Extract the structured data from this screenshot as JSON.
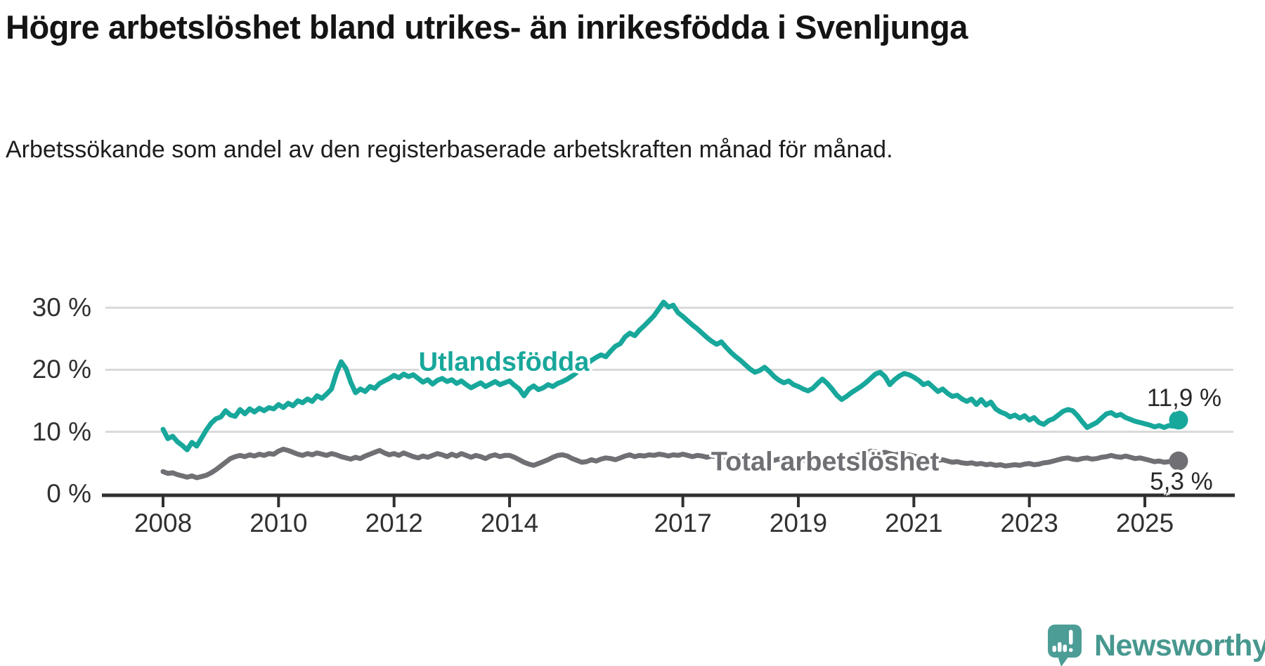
{
  "title": "Högre arbetslöshet bland utrikes- än inrikesfödda i Svenljunga",
  "subtitle": "Arbetssökande som andel av den registerbaserade arbetskraften månad för månad.",
  "colors": {
    "foreign_born_line": "#18a79b",
    "total_line": "#707074",
    "gridline": "#d8d8d8",
    "axis": "#303030",
    "text": "#1d1d1d",
    "logo_teal": "#4d9d97"
  },
  "branding": {
    "logo_text": "Newsworthy"
  },
  "chart_data": {
    "type": "line",
    "title": "Högre arbetslöshet bland utrikes- än inrikesfödda i Svenljunga",
    "subtitle": "Arbetssökande som andel av den registerbaserade arbetskraften månad för månad.",
    "x_unit": "month",
    "x_start": "2008-01",
    "x_end": "2025-08",
    "x_ticks": [
      2008,
      2010,
      2012,
      2014,
      2017,
      2019,
      2021,
      2023,
      2025
    ],
    "y_ticks": [
      {
        "value": 30,
        "label": "30 %"
      },
      {
        "value": 20,
        "label": "20 %"
      },
      {
        "value": 10,
        "label": "10 %"
      },
      {
        "value": 0,
        "label": "0 %"
      }
    ],
    "ylim": [
      0,
      32
    ],
    "grid": "horizontal",
    "legend_position": "inline-labels",
    "series": [
      {
        "name": "Utlandsfödda",
        "color": "#18a79b",
        "end_label": "11,9 %",
        "end_value": 11.9,
        "values": [
          10.4,
          8.9,
          9.3,
          8.4,
          7.8,
          7.1,
          8.3,
          7.7,
          9.0,
          10.3,
          11.4,
          12.1,
          12.4,
          13.4,
          12.7,
          12.5,
          13.6,
          12.9,
          13.7,
          13.2,
          13.8,
          13.4,
          13.9,
          13.7,
          14.4,
          13.9,
          14.6,
          14.2,
          15.0,
          14.7,
          15.3,
          14.9,
          15.8,
          15.4,
          16.1,
          16.9,
          19.4,
          21.3,
          20.2,
          18.0,
          16.3,
          16.9,
          16.5,
          17.3,
          17.0,
          17.8,
          18.2,
          18.6,
          19.1,
          18.7,
          19.3,
          18.9,
          19.2,
          18.6,
          18.0,
          18.4,
          17.7,
          18.3,
          18.6,
          18.1,
          18.4,
          17.8,
          18.2,
          17.6,
          17.1,
          17.5,
          17.9,
          17.3,
          17.7,
          18.1,
          17.6,
          17.9,
          18.2,
          17.5,
          16.9,
          15.8,
          16.9,
          17.4,
          16.8,
          17.1,
          17.6,
          17.3,
          17.8,
          18.1,
          18.5,
          19.0,
          19.6,
          20.3,
          20.9,
          21.5,
          22.0,
          22.4,
          22.1,
          23.0,
          23.8,
          24.2,
          25.3,
          25.9,
          25.5,
          26.4,
          27.1,
          27.9,
          28.7,
          29.8,
          30.9,
          30.1,
          30.4,
          29.2,
          28.6,
          27.9,
          27.2,
          26.6,
          25.9,
          25.2,
          24.6,
          24.1,
          24.5,
          23.6,
          22.8,
          22.1,
          21.5,
          20.8,
          20.1,
          19.6,
          19.9,
          20.4,
          19.7,
          18.9,
          18.3,
          17.9,
          18.2,
          17.6,
          17.3,
          16.9,
          16.6,
          17.0,
          17.8,
          18.5,
          17.8,
          16.9,
          15.9,
          15.2,
          15.7,
          16.3,
          16.8,
          17.3,
          17.9,
          18.6,
          19.3,
          19.6,
          18.9,
          17.6,
          18.4,
          19.0,
          19.4,
          19.2,
          18.8,
          18.3,
          17.6,
          17.9,
          17.2,
          16.5,
          16.9,
          16.2,
          15.7,
          15.9,
          15.3,
          14.9,
          15.3,
          14.4,
          15.2,
          14.3,
          14.8,
          13.7,
          13.2,
          12.9,
          12.4,
          12.7,
          12.2,
          12.6,
          11.9,
          12.3,
          11.5,
          11.2,
          11.8,
          12.1,
          12.7,
          13.3,
          13.6,
          13.4,
          12.6,
          11.6,
          10.7,
          11.1,
          11.5,
          12.2,
          12.9,
          13.1,
          12.6,
          12.8,
          12.3,
          12.0,
          11.7,
          11.5,
          11.3,
          11.1,
          10.8,
          11.0,
          10.7,
          11.0,
          10.9,
          11.9
        ]
      },
      {
        "name": "Total arbetslöshet",
        "color": "#707074",
        "end_label": "5,3 %",
        "end_value": 5.3,
        "values": [
          3.6,
          3.3,
          3.4,
          3.1,
          2.9,
          2.7,
          2.9,
          2.6,
          2.8,
          3.0,
          3.4,
          3.9,
          4.5,
          5.1,
          5.7,
          6.0,
          6.2,
          6.0,
          6.3,
          6.1,
          6.4,
          6.2,
          6.5,
          6.4,
          6.9,
          7.2,
          7.0,
          6.7,
          6.4,
          6.2,
          6.5,
          6.3,
          6.6,
          6.4,
          6.2,
          6.5,
          6.3,
          6.0,
          5.8,
          5.6,
          5.9,
          5.7,
          6.1,
          6.4,
          6.7,
          7.0,
          6.6,
          6.3,
          6.5,
          6.2,
          6.6,
          6.3,
          6.0,
          5.8,
          6.1,
          5.9,
          6.2,
          6.5,
          6.3,
          6.0,
          6.4,
          6.1,
          6.5,
          6.2,
          5.9,
          6.2,
          6.0,
          5.7,
          6.1,
          6.3,
          6.0,
          6.2,
          6.2,
          5.9,
          5.5,
          5.1,
          4.8,
          4.6,
          4.9,
          5.2,
          5.5,
          5.9,
          6.2,
          6.3,
          6.1,
          5.7,
          5.4,
          5.1,
          5.2,
          5.5,
          5.3,
          5.6,
          5.8,
          5.7,
          5.5,
          5.8,
          6.1,
          6.3,
          6.0,
          6.2,
          6.1,
          6.3,
          6.2,
          6.4,
          6.3,
          6.1,
          6.3,
          6.2,
          6.4,
          6.2,
          6.0,
          6.2,
          6.1,
          5.9,
          6.1,
          6.0,
          5.8,
          6.0,
          5.9,
          6.1,
          6.0,
          5.8,
          5.9,
          5.7,
          5.5,
          5.7,
          5.6,
          5.4,
          5.6,
          5.5,
          5.3,
          5.5,
          5.6,
          5.4,
          5.5,
          5.3,
          5.5,
          5.7,
          5.5,
          5.3,
          5.4,
          5.6,
          5.8,
          6.0,
          6.2,
          6.4,
          6.6,
          6.9,
          6.8,
          6.6,
          6.7,
          6.5,
          6.3,
          6.4,
          6.2,
          6.3,
          6.1,
          5.9,
          5.7,
          5.8,
          5.6,
          5.4,
          5.5,
          5.3,
          5.1,
          5.2,
          5.0,
          4.9,
          5.0,
          4.8,
          4.9,
          4.7,
          4.8,
          4.6,
          4.7,
          4.5,
          4.6,
          4.7,
          4.6,
          4.8,
          4.9,
          4.7,
          4.8,
          5.0,
          5.1,
          5.3,
          5.5,
          5.7,
          5.8,
          5.6,
          5.5,
          5.7,
          5.8,
          5.6,
          5.7,
          5.9,
          6.0,
          6.2,
          6.0,
          5.9,
          6.1,
          5.9,
          5.7,
          5.8,
          5.6,
          5.4,
          5.2,
          5.3,
          5.1,
          5.2,
          5.4,
          5.3
        ]
      }
    ]
  }
}
